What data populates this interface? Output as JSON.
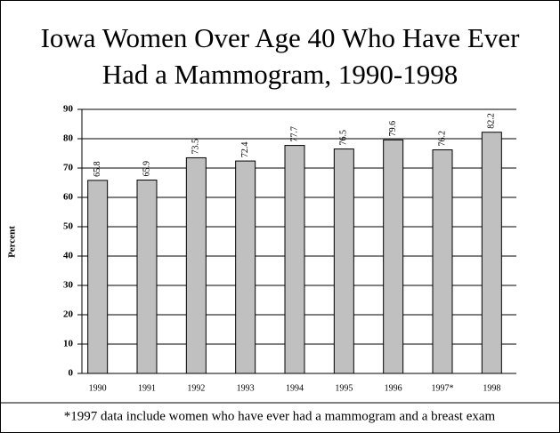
{
  "chart_data": {
    "type": "bar",
    "title": "Iowa Women Over Age 40 Who Have Ever Had a Mammogram, 1990-1998",
    "categories": [
      "1990",
      "1991",
      "1992",
      "1993",
      "1994",
      "1995",
      "1996",
      "1997*",
      "1998"
    ],
    "values": [
      65.8,
      65.9,
      73.5,
      72.4,
      77.7,
      76.5,
      79.6,
      76.2,
      82.2
    ],
    "color": "#c0c0c0",
    "ylabel": "Percent",
    "ylim": [
      0,
      90
    ],
    "yticks": [
      0,
      10,
      20,
      30,
      40,
      50,
      60,
      70,
      80,
      90
    ],
    "grid": true,
    "annotation": "*1997 data include women who have ever had a mammogram and a breast exam"
  }
}
